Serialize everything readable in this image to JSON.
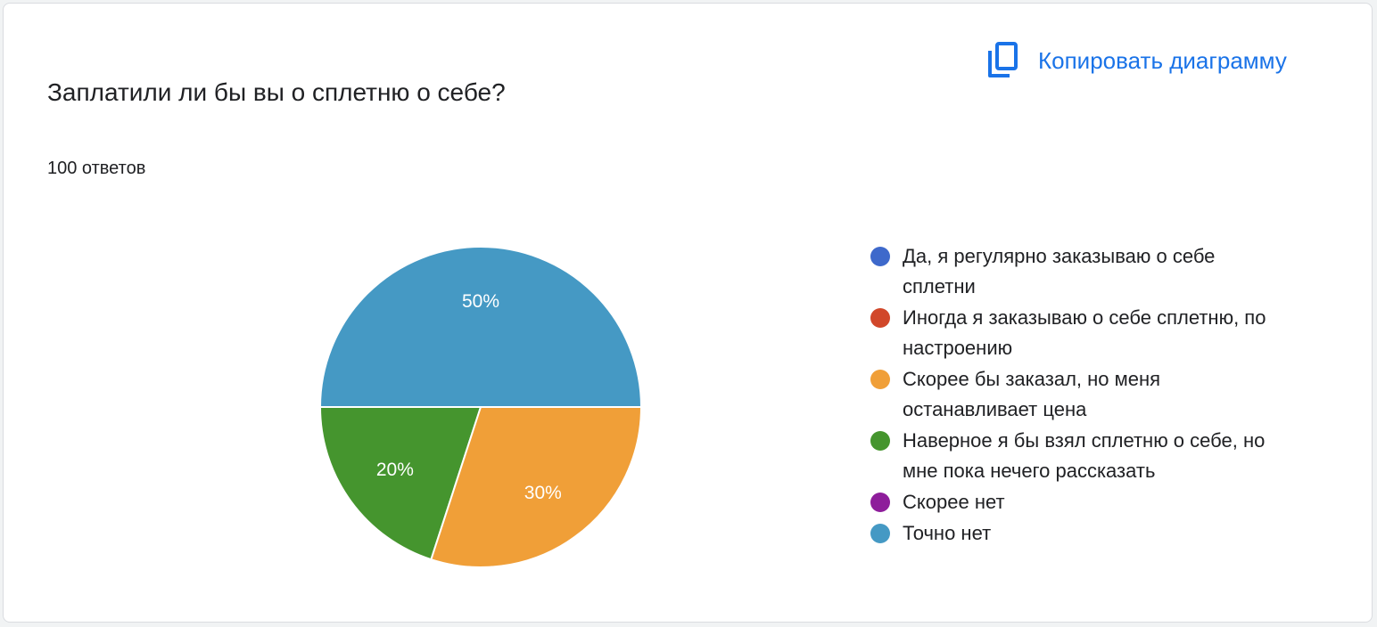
{
  "question": "Заплатили ли бы вы о сплетню о себе?",
  "responses_label": "100 ответов",
  "copy_button": {
    "label": "Копировать диаграмму",
    "icon": "copy-icon",
    "color": "#1a73e8"
  },
  "chart_data": {
    "type": "pie",
    "title": "Заплатили ли бы вы о сплетню о себе?",
    "categories": [
      "Да, я регулярно заказываю о себе сплетни",
      "Иногда я заказываю о себе сплетню, по настроению",
      "Скорее бы заказал, но меня останавливает цена",
      "Наверное я бы взял сплетню о себе, но мне пока нечего рассказать",
      "Скорее нет",
      "Точно нет"
    ],
    "values": [
      0,
      0,
      30,
      20,
      0,
      50
    ],
    "value_labels": [
      "",
      "",
      "30%",
      "20%",
      "",
      "50%"
    ],
    "colors": [
      "#3e69cb",
      "#d1472a",
      "#f09f38",
      "#45952e",
      "#8e1d9b",
      "#4599c4"
    ],
    "legend_position": "right"
  }
}
